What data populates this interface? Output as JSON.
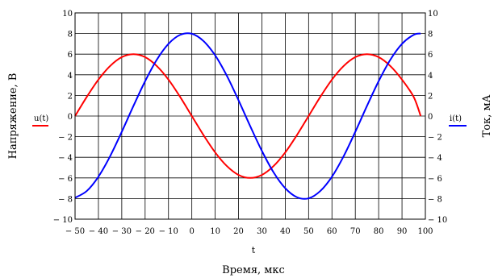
{
  "chart_data": {
    "type": "line",
    "xlabel": "Время, мкс",
    "x_variable": "t",
    "ylabel_left": "Напряжение, В",
    "ylabel_right": "Ток, мА",
    "xlim": [
      -50,
      100
    ],
    "ylim_left": [
      -10,
      10
    ],
    "ylim_right": [
      -10,
      10
    ],
    "x_ticks": [
      -50,
      -40,
      -30,
      -20,
      -10,
      0,
      10,
      20,
      30,
      40,
      50,
      60,
      70,
      80,
      90,
      100
    ],
    "y_ticks_left": [
      -10,
      -8,
      -6,
      -4,
      -2,
      0,
      2,
      4,
      6,
      8,
      10
    ],
    "y_ticks_right": [
      -10,
      -8,
      -6,
      -4,
      -2,
      0,
      2,
      4,
      6,
      8,
      10
    ],
    "x_tick_labels": [
      "− 50",
      "− 40",
      "− 30",
      "− 20",
      "− 10",
      "0",
      "10",
      "20",
      "30",
      "40",
      "50",
      "60",
      "70",
      "80",
      "90",
      "100"
    ],
    "y_tick_labels_left": [
      "− 10",
      "− 8",
      "− 6",
      "− 4",
      "− 2",
      "0",
      "2",
      "4",
      "6",
      "8",
      "10"
    ],
    "y_tick_labels_right": [
      "− 10",
      "− 8",
      "− 6",
      "− 4",
      "− 2",
      "0",
      "2",
      "4",
      "6",
      "8",
      "10"
    ],
    "grid": true,
    "series": [
      {
        "name": "u(t)",
        "axis": "left",
        "color": "#ff0000",
        "x": [
          -50,
          -45,
          -40,
          -35,
          -30,
          -25,
          -20,
          -15,
          -10,
          -5,
          0,
          5,
          10,
          15,
          20,
          25,
          30,
          35,
          40,
          45,
          50,
          55,
          60,
          65,
          70,
          75,
          80,
          85,
          90,
          95,
          98
        ],
        "y": [
          0,
          1.85,
          3.53,
          4.85,
          5.71,
          6.0,
          5.71,
          4.85,
          3.53,
          1.85,
          0,
          -1.85,
          -3.53,
          -4.85,
          -5.71,
          -6.0,
          -5.71,
          -4.85,
          -3.53,
          -1.85,
          0,
          1.85,
          3.53,
          4.85,
          5.71,
          6.0,
          5.71,
          4.85,
          3.53,
          1.85,
          0
        ]
      },
      {
        "name": "i(t)",
        "axis": "right",
        "color": "#0000ff",
        "x": [
          -50,
          -45,
          -40,
          -35,
          -30,
          -25,
          -20,
          -15,
          -10,
          -5,
          0,
          5,
          10,
          15,
          20,
          25,
          30,
          35,
          40,
          45,
          50,
          55,
          60,
          65,
          70,
          75,
          80,
          85,
          90,
          95,
          98
        ],
        "y": [
          -7.92,
          -7.27,
          -5.88,
          -3.9,
          -1.53,
          0.98,
          3.38,
          5.46,
          7.0,
          7.87,
          7.98,
          7.27,
          5.88,
          3.9,
          1.53,
          -0.98,
          -3.38,
          -5.46,
          -7.0,
          -7.87,
          -7.98,
          -7.27,
          -5.88,
          -3.9,
          -1.53,
          0.98,
          3.38,
          5.46,
          7.0,
          7.87,
          8.0
        ]
      }
    ]
  },
  "colors": {
    "frame": "#000000",
    "grid": "#000000"
  }
}
